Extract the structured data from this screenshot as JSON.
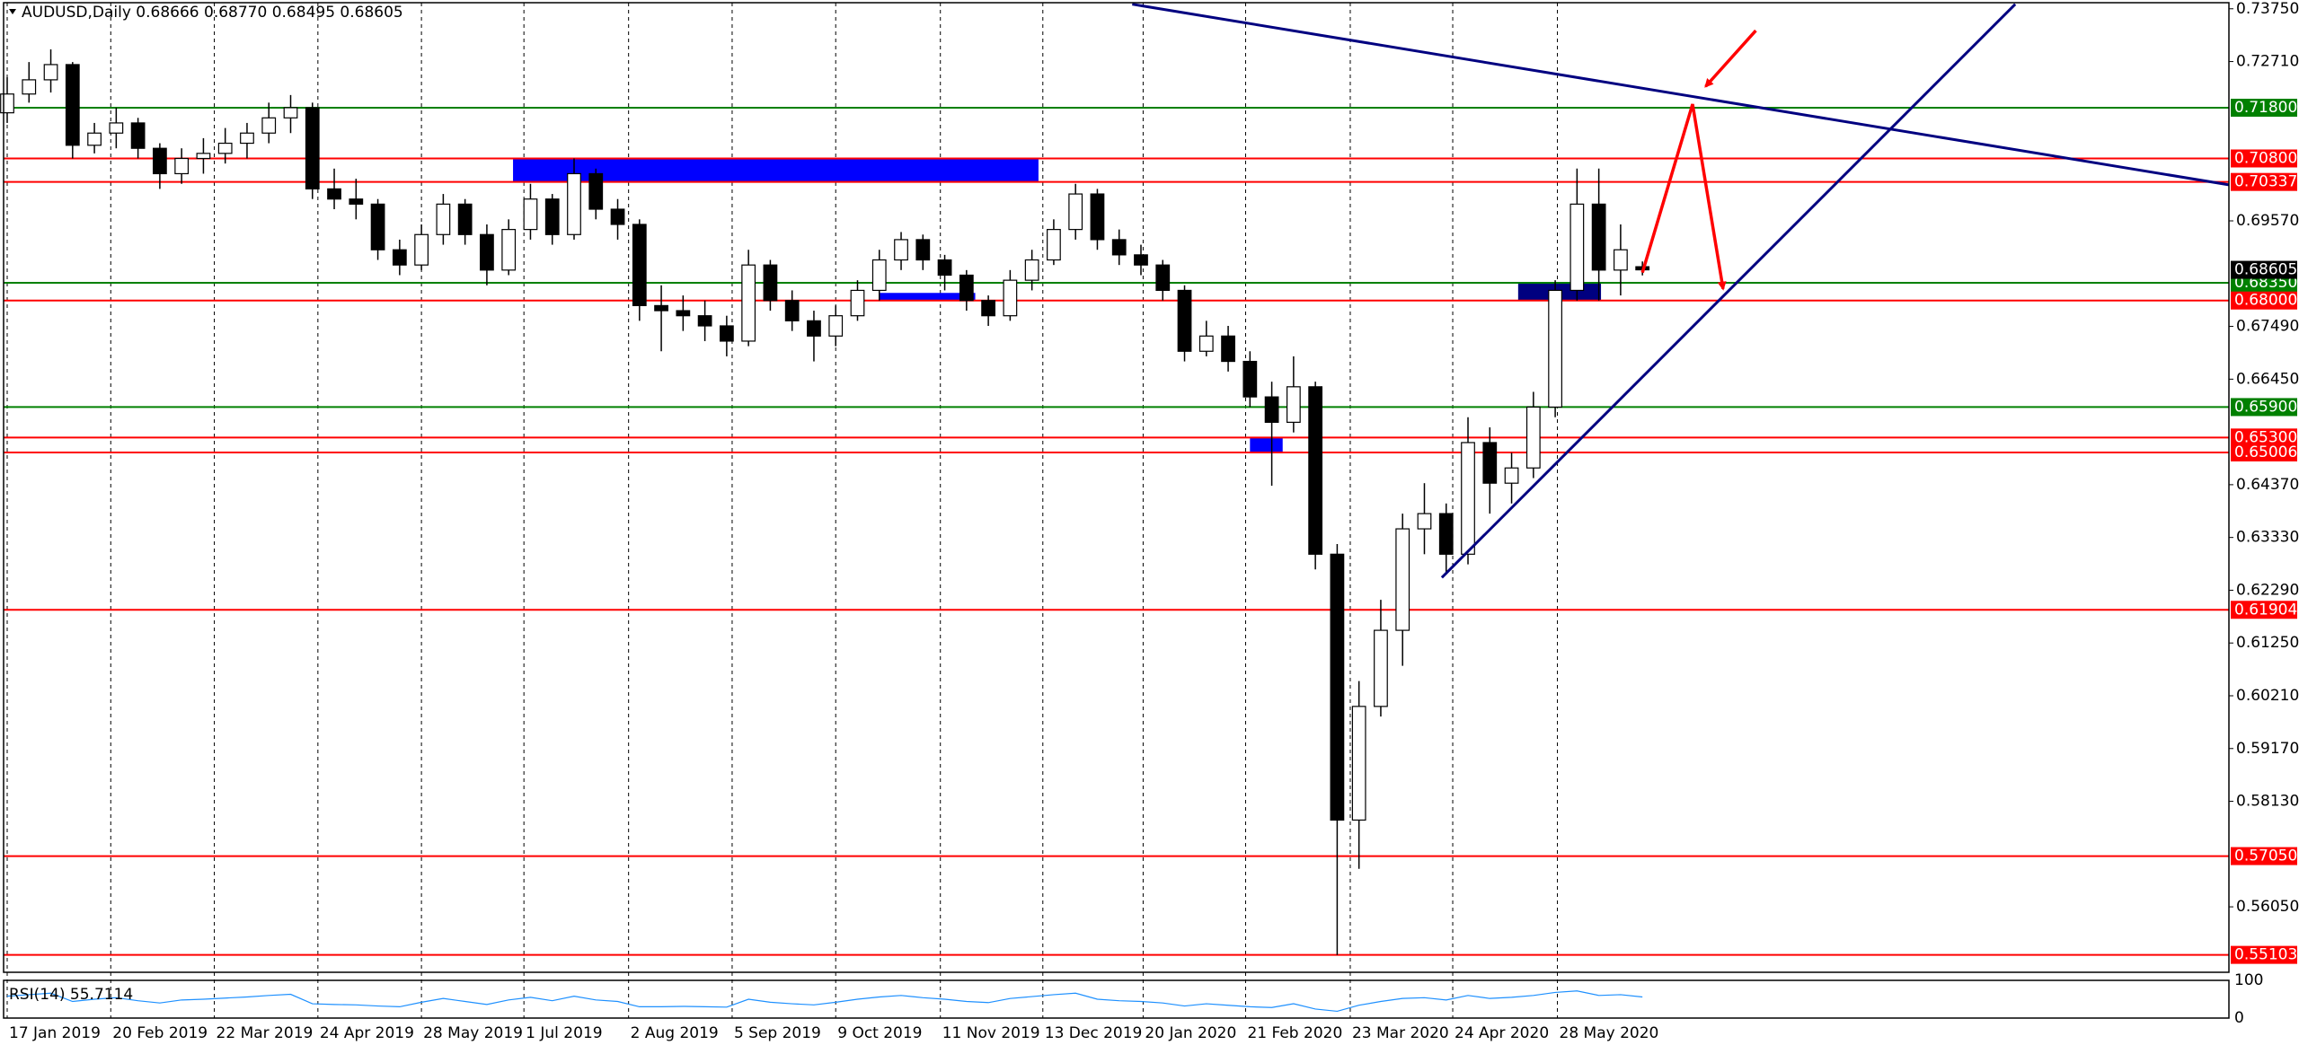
{
  "chart_data": {
    "type": "candlestick",
    "header": "AUDUSD,Daily  0.68666 0.68770 0.68495 0.68605",
    "xlim": [
      -0.33,
      101.9
    ],
    "xticks": [
      {
        "value": 0,
        "label": "17 Jan 2019"
      },
      {
        "value": 4.75,
        "label": "20 Feb 2019"
      },
      {
        "value": 9.5,
        "label": "22 Mar 2019"
      },
      {
        "value": 14.25,
        "label": "24 Apr 2019"
      },
      {
        "value": 19,
        "label": "28 May 2019"
      },
      {
        "value": 23.7,
        "label": "1 Jul 2019"
      },
      {
        "value": 28.5,
        "label": "2 Aug 2019"
      },
      {
        "value": 33.25,
        "label": "5 Sep 2019"
      },
      {
        "value": 38,
        "label": "9 Oct 2019"
      },
      {
        "value": 42.8,
        "label": "11 Nov 2019"
      },
      {
        "value": 47.5,
        "label": "13 Dec 2019"
      },
      {
        "value": 52.1,
        "label": "20 Jan 2020"
      },
      {
        "value": 56.8,
        "label": "21 Feb 2020"
      },
      {
        "value": 61.6,
        "label": "23 Mar 2020"
      },
      {
        "value": 66.3,
        "label": "24 Apr 2020"
      },
      {
        "value": 71.1,
        "label": "28 May 2020"
      }
    ],
    "ylim": [
      0.5476,
      0.7387
    ],
    "yticks": [
      {
        "value": 0.7375,
        "label": "0.73750"
      },
      {
        "value": 0.7271,
        "label": "0.72710"
      },
      {
        "value": 0.6957,
        "label": "0.69570"
      },
      {
        "value": 0.6749,
        "label": "0.67490"
      },
      {
        "value": 0.6645,
        "label": "0.66450"
      },
      {
        "value": 0.6437,
        "label": "0.64370"
      },
      {
        "value": 0.6333,
        "label": "0.63330"
      },
      {
        "value": 0.6229,
        "label": "0.62290"
      },
      {
        "value": 0.6125,
        "label": "0.61250"
      },
      {
        "value": 0.6021,
        "label": "0.60210"
      },
      {
        "value": 0.5917,
        "label": "0.59170"
      },
      {
        "value": 0.5813,
        "label": "0.58130"
      },
      {
        "value": 0.5605,
        "label": "0.56050"
      }
    ],
    "grid": true,
    "up_color": "#ffffff",
    "down_color": "#000000",
    "candles": [
      [
        0.717,
        0.724,
        0.715,
        0.7207
      ],
      [
        0.7207,
        0.727,
        0.719,
        0.7235
      ],
      [
        0.7235,
        0.7295,
        0.721,
        0.7265
      ],
      [
        0.7265,
        0.727,
        0.708,
        0.7106
      ],
      [
        0.7106,
        0.715,
        0.709,
        0.713
      ],
      [
        0.713,
        0.718,
        0.71,
        0.715
      ],
      [
        0.715,
        0.716,
        0.708,
        0.71
      ],
      [
        0.71,
        0.711,
        0.702,
        0.705
      ],
      [
        0.705,
        0.71,
        0.703,
        0.708
      ],
      [
        0.708,
        0.712,
        0.705,
        0.709
      ],
      [
        0.709,
        0.714,
        0.707,
        0.711
      ],
      [
        0.711,
        0.715,
        0.708,
        0.713
      ],
      [
        0.713,
        0.719,
        0.711,
        0.716
      ],
      [
        0.716,
        0.7205,
        0.713,
        0.718
      ],
      [
        0.718,
        0.719,
        0.7,
        0.702
      ],
      [
        0.702,
        0.706,
        0.698,
        0.7
      ],
      [
        0.7,
        0.704,
        0.696,
        0.699
      ],
      [
        0.699,
        0.7,
        0.688,
        0.69
      ],
      [
        0.69,
        0.692,
        0.685,
        0.687
      ],
      [
        0.687,
        0.695,
        0.686,
        0.693
      ],
      [
        0.693,
        0.701,
        0.691,
        0.699
      ],
      [
        0.699,
        0.7,
        0.691,
        0.693
      ],
      [
        0.693,
        0.695,
        0.683,
        0.686
      ],
      [
        0.686,
        0.696,
        0.685,
        0.694
      ],
      [
        0.694,
        0.703,
        0.692,
        0.7
      ],
      [
        0.7,
        0.701,
        0.691,
        0.693
      ],
      [
        0.693,
        0.708,
        0.692,
        0.705
      ],
      [
        0.705,
        0.706,
        0.696,
        0.698
      ],
      [
        0.698,
        0.7,
        0.692,
        0.695
      ],
      [
        0.695,
        0.696,
        0.676,
        0.679
      ],
      [
        0.679,
        0.683,
        0.67,
        0.678
      ],
      [
        0.678,
        0.681,
        0.674,
        0.677
      ],
      [
        0.677,
        0.68,
        0.672,
        0.675
      ],
      [
        0.675,
        0.677,
        0.669,
        0.672
      ],
      [
        0.672,
        0.69,
        0.671,
        0.687
      ],
      [
        0.687,
        0.688,
        0.678,
        0.68
      ],
      [
        0.68,
        0.682,
        0.674,
        0.676
      ],
      [
        0.676,
        0.678,
        0.668,
        0.673
      ],
      [
        0.673,
        0.679,
        0.671,
        0.677
      ],
      [
        0.677,
        0.684,
        0.676,
        0.682
      ],
      [
        0.682,
        0.69,
        0.68,
        0.688
      ],
      [
        0.688,
        0.6935,
        0.686,
        0.692
      ],
      [
        0.692,
        0.693,
        0.686,
        0.688
      ],
      [
        0.688,
        0.689,
        0.682,
        0.685
      ],
      [
        0.685,
        0.686,
        0.678,
        0.68
      ],
      [
        0.68,
        0.681,
        0.675,
        0.677
      ],
      [
        0.677,
        0.686,
        0.676,
        0.684
      ],
      [
        0.684,
        0.69,
        0.682,
        0.688
      ],
      [
        0.688,
        0.696,
        0.687,
        0.694
      ],
      [
        0.694,
        0.703,
        0.692,
        0.701
      ],
      [
        0.701,
        0.702,
        0.69,
        0.692
      ],
      [
        0.692,
        0.694,
        0.687,
        0.689
      ],
      [
        0.689,
        0.691,
        0.685,
        0.687
      ],
      [
        0.687,
        0.688,
        0.68,
        0.682
      ],
      [
        0.682,
        0.683,
        0.668,
        0.67
      ],
      [
        0.67,
        0.676,
        0.669,
        0.673
      ],
      [
        0.673,
        0.675,
        0.666,
        0.668
      ],
      [
        0.668,
        0.67,
        0.659,
        0.661
      ],
      [
        0.661,
        0.664,
        0.6435,
        0.656
      ],
      [
        0.656,
        0.669,
        0.654,
        0.663
      ],
      [
        0.663,
        0.664,
        0.627,
        0.63
      ],
      [
        0.63,
        0.632,
        0.551,
        0.5776
      ],
      [
        0.5776,
        0.605,
        0.568,
        0.6
      ],
      [
        0.6,
        0.621,
        0.598,
        0.615
      ],
      [
        0.615,
        0.638,
        0.608,
        0.635
      ],
      [
        0.635,
        0.644,
        0.63,
        0.638
      ],
      [
        0.638,
        0.64,
        0.626,
        0.63
      ],
      [
        0.63,
        0.657,
        0.628,
        0.652
      ],
      [
        0.652,
        0.655,
        0.638,
        0.644
      ],
      [
        0.644,
        0.65,
        0.64,
        0.647
      ],
      [
        0.647,
        0.662,
        0.645,
        0.659
      ],
      [
        0.659,
        0.684,
        0.657,
        0.682
      ],
      [
        0.682,
        0.706,
        0.68,
        0.699
      ],
      [
        0.699,
        0.706,
        0.68,
        0.686
      ],
      [
        0.686,
        0.695,
        0.681,
        0.69
      ],
      [
        0.68666,
        0.6877,
        0.68495,
        0.68605
      ]
    ],
    "levels": [
      {
        "value": 0.718,
        "label": "0.71800",
        "color": "#008000"
      },
      {
        "value": 0.708,
        "label": "0.70800",
        "color": "#ff0000"
      },
      {
        "value": 0.70337,
        "label": "0.70337",
        "color": "#ff0000"
      },
      {
        "value": 0.6835,
        "label": "0.68350",
        "color": "#008000"
      },
      {
        "value": 0.68,
        "label": "0.68000",
        "color": "#ff0000"
      },
      {
        "value": 0.659,
        "label": "0.65900",
        "color": "#008000"
      },
      {
        "value": 0.653,
        "label": "0.65300",
        "color": "#ff0000"
      },
      {
        "value": 0.65006,
        "label": "0.65006",
        "color": "#ff0000"
      },
      {
        "value": 0.61904,
        "label": "0.61904",
        "color": "#ff0000"
      },
      {
        "value": 0.5705,
        "label": "0.57050",
        "color": "#ff0000"
      },
      {
        "value": 0.55103,
        "label": "0.55103",
        "color": "#ff0000"
      }
    ],
    "current_price": {
      "value": 0.68605,
      "label": "0.68605",
      "color": "#000000"
    },
    "zones": [
      {
        "x": [
          23.2,
          47.3
        ],
        "y": [
          0.70337,
          0.708
        ],
        "color": "#0000ff"
      },
      {
        "x": [
          40,
          44.4
        ],
        "y": [
          0.68,
          0.6815
        ],
        "color": "#0000ff"
      },
      {
        "x": [
          57,
          58.5
        ],
        "y": [
          0.65006,
          0.653
        ],
        "color": "#0000ff"
      },
      {
        "x": [
          69.3,
          73.1
        ],
        "y": [
          0.68,
          0.6835
        ],
        "color": "#000080"
      }
    ],
    "trendlines": [
      {
        "x": [
          51.6,
          101.9
        ],
        "y": [
          0.7384,
          0.7028
        ],
        "color": "#000080"
      },
      {
        "x": [
          65.8,
          92.1
        ],
        "y": [
          0.6254,
          0.7384
        ],
        "color": "#000080"
      }
    ],
    "arrows": [
      {
        "x": [
          75,
          77.3,
          78.7
        ],
        "y": [
          0.6855,
          0.7187,
          0.6823
        ],
        "color": "#ff0000"
      },
      {
        "x": [
          80.2,
          77.9
        ],
        "y": [
          0.7332,
          0.7222
        ],
        "color": "#ff0000"
      }
    ],
    "rsi": {
      "label": "RSI(14) 55.7114",
      "ylim": [
        0,
        100
      ],
      "yticks": [
        100,
        0
      ],
      "color": "#1e90ff",
      "values": [
        58,
        62,
        66,
        44,
        50,
        54,
        46,
        40,
        48,
        50,
        53,
        56,
        60,
        63,
        38,
        36,
        35,
        32,
        30,
        42,
        52,
        44,
        36,
        48,
        55,
        46,
        58,
        48,
        44,
        30,
        30,
        31,
        30,
        29,
        50,
        42,
        38,
        35,
        42,
        50,
        56,
        60,
        54,
        50,
        44,
        41,
        52,
        57,
        62,
        66,
        50,
        46,
        44,
        40,
        32,
        38,
        34,
        30,
        28,
        38,
        24,
        18,
        34,
        44,
        52,
        54,
        48,
        60,
        52,
        55,
        60,
        68,
        72,
        60,
        62,
        56
      ]
    }
  }
}
